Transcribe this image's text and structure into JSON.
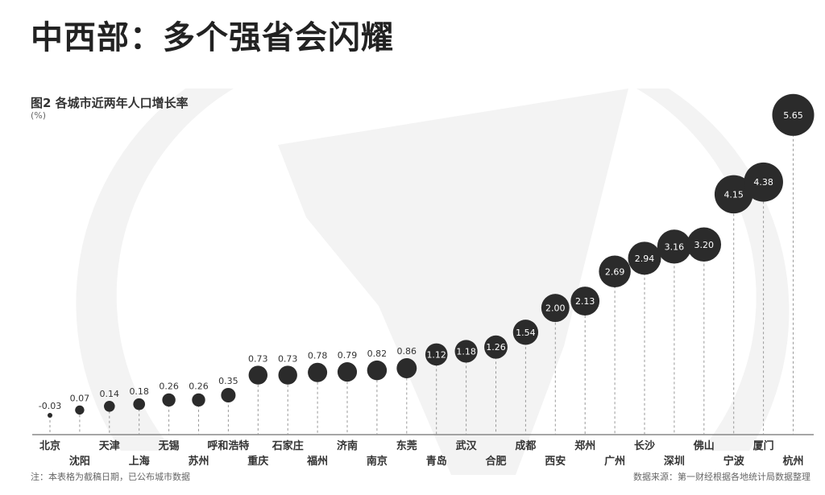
{
  "header": {
    "title": "中西部：多个强省会闪耀"
  },
  "chart_data": {
    "type": "scatter",
    "title": "图2 各城市近两年人口增长率",
    "ylabel": "(%)",
    "categories": [
      "北京",
      "沈阳",
      "天津",
      "上海",
      "无锡",
      "苏州",
      "呼和浩特",
      "重庆",
      "石家庄",
      "福州",
      "济南",
      "南京",
      "东莞",
      "青岛",
      "武汉",
      "合肥",
      "成都",
      "西安",
      "郑州",
      "广州",
      "长沙",
      "深圳",
      "佛山",
      "宁波",
      "厦门",
      "杭州"
    ],
    "values": [
      -0.03,
      0.07,
      0.14,
      0.18,
      0.26,
      0.26,
      0.35,
      0.73,
      0.73,
      0.78,
      0.79,
      0.82,
      0.86,
      1.12,
      1.18,
      1.26,
      1.54,
      2.0,
      2.13,
      2.69,
      2.94,
      3.16,
      3.2,
      4.15,
      4.38,
      5.65
    ],
    "value_labels": [
      "-0.03",
      "0.07",
      "0.14",
      "0.18",
      "0.26",
      "0.26",
      "0.35",
      "0.73",
      "0.73",
      "0.78",
      "0.79",
      "0.82",
      "0.86",
      "1.12",
      "1.18",
      "1.26",
      "1.54",
      "2.00",
      "2.13",
      "2.69",
      "2.94",
      "3.16",
      "3.20",
      "4.15",
      "4.38",
      "5.65"
    ],
    "note": "注：本表格为截稿日期，已公布城市数据",
    "source": "数据来源：第一财经根据各地统计局数据整理",
    "colors": {
      "dot": "#2b2b2b",
      "watermark": "#f2f2f2"
    }
  }
}
